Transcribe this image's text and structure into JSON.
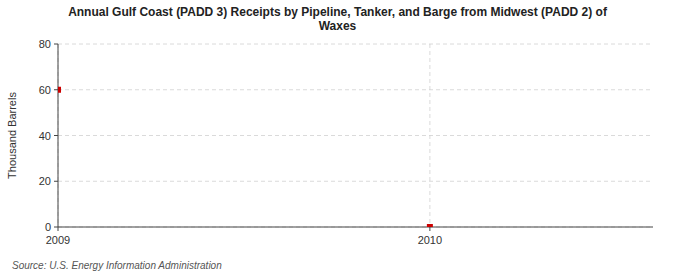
{
  "chart_data": {
    "type": "scatter",
    "title": "Annual Gulf Coast (PADD 3) Receipts by Pipeline, Tanker, and Barge from Midwest (PADD 2) of\nWaxes",
    "y_label": "Thousand Barrels",
    "annotations": [
      "Source: U.S. Energy Information Administration"
    ],
    "x": [
      2009,
      2010
    ],
    "values": [
      60,
      0
    ],
    "color": "#cc0000",
    "marker": "square",
    "xlim": [
      2009,
      2010.6
    ],
    "ylim": [
      0,
      80
    ],
    "xticks": [
      2009,
      2010
    ],
    "yticks": [
      0,
      20,
      40,
      60,
      80
    ],
    "grid": true
  }
}
